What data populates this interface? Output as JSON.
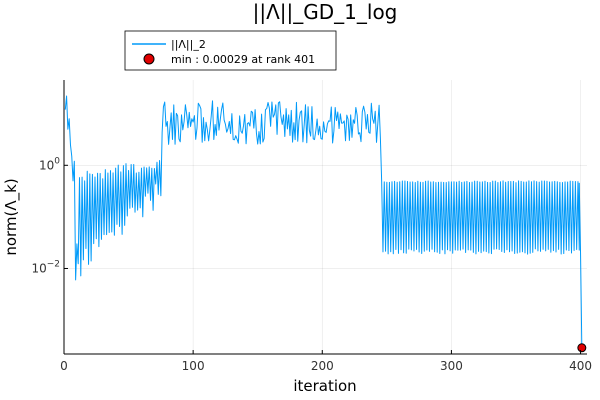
{
  "chart_data": {
    "type": "line",
    "title": "||Λ||_GD_1_log",
    "xlabel": "iteration",
    "ylabel": "norm(Λ_k)",
    "yscale": "log10",
    "xlim": [
      0,
      405
    ],
    "ylim": [
      0.00022,
      45
    ],
    "x_ticks": [
      0,
      100,
      200,
      300,
      400
    ],
    "y_ticks": [
      {
        "value": 1,
        "base": "10",
        "exp": "0"
      },
      {
        "value": 0.01,
        "base": "10",
        "exp": "−2"
      }
    ],
    "grid": true,
    "legend_position": "top-left, outside plot area",
    "series": [
      {
        "name": "||Λ||_2",
        "kind": "line",
        "color": "#009af9",
        "phases": [
          {
            "x": [
              1,
              2,
              3,
              4,
              5,
              6,
              7,
              8,
              9,
              10
            ],
            "y": [
              12,
              22,
              5,
              8,
              2.5,
              1.5,
              0.5,
              1.2,
              0.006,
              0.03
            ]
          },
          {
            "x_range": [
              10,
              75
            ],
            "low_start": 0.01,
            "low_end": 0.3,
            "high_start": 0.6,
            "high_end": 1.2
          },
          {
            "x_range": [
              75,
              245
            ],
            "low": 2.5,
            "high": 18
          },
          {
            "x_range": [
              245,
              399
            ],
            "low": 0.02,
            "high": 0.5,
            "period": 2
          },
          {
            "x": [
              399,
              400,
              401
            ],
            "y": [
              0.45,
              0.02,
              0.00029
            ]
          }
        ]
      },
      {
        "name": "min : 0.00029 at rank 401",
        "kind": "scatter",
        "color": "#e00000",
        "x": [
          401
        ],
        "y": [
          0.00029
        ]
      }
    ]
  }
}
